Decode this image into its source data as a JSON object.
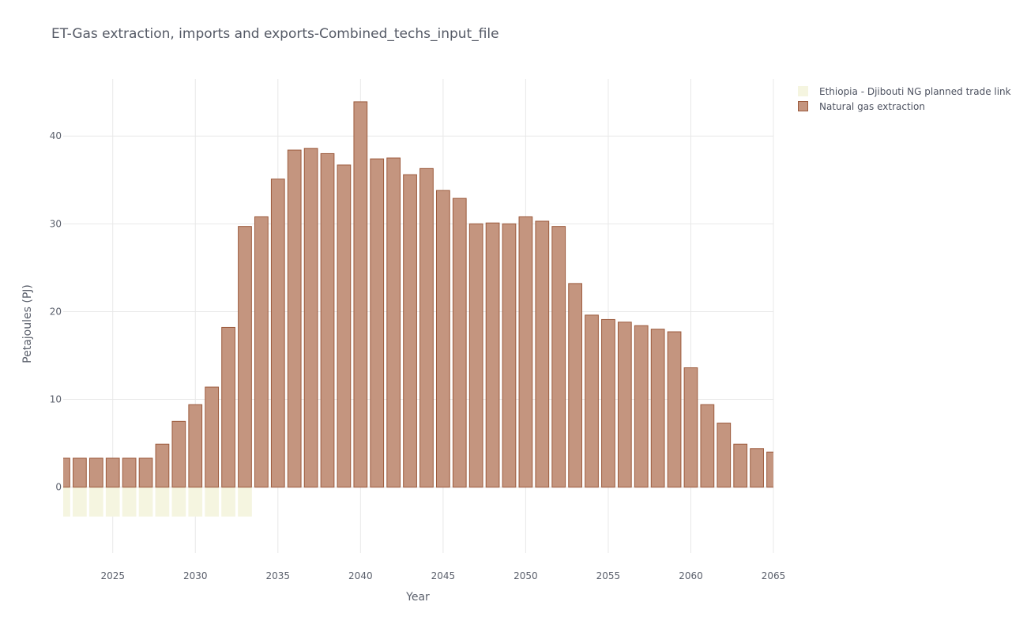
{
  "chart_data": {
    "type": "bar",
    "barmode": "relative",
    "title": "ET-Gas extraction, imports and exports-Combined_techs_input_file",
    "xlabel": "Year",
    "ylabel": "Petajoules (PJ)",
    "xlim": [
      2022,
      2065
    ],
    "ylim": [
      -7.5,
      46.5
    ],
    "xticks": [
      2025,
      2030,
      2035,
      2040,
      2045,
      2050,
      2055,
      2060,
      2065
    ],
    "yticks": [
      0,
      10,
      20,
      30,
      40
    ],
    "grid": true,
    "legend_position": "top-right",
    "series": [
      {
        "name": "Ethiopia - Djibouti NG planned trade link",
        "color": "#f5f5e0",
        "stroke": "#f5f5e0",
        "x": [
          2022,
          2023,
          2024,
          2025,
          2026,
          2027,
          2028,
          2029,
          2030,
          2031,
          2032,
          2033
        ],
        "values": [
          -3.3,
          -3.3,
          -3.3,
          -3.3,
          -3.3,
          -3.3,
          -3.3,
          -3.3,
          -3.3,
          -3.3,
          -3.3,
          -3.3
        ]
      },
      {
        "name": "Natural gas extraction",
        "color": "#c4957f",
        "stroke": "#9c5a3c",
        "x": [
          2022,
          2023,
          2024,
          2025,
          2026,
          2027,
          2028,
          2029,
          2030,
          2031,
          2032,
          2033,
          2034,
          2035,
          2036,
          2037,
          2038,
          2039,
          2040,
          2041,
          2042,
          2043,
          2044,
          2045,
          2046,
          2047,
          2048,
          2049,
          2050,
          2051,
          2052,
          2053,
          2054,
          2055,
          2056,
          2057,
          2058,
          2059,
          2060,
          2061,
          2062,
          2063,
          2064,
          2065
        ],
        "values": [
          3.3,
          3.3,
          3.3,
          3.3,
          3.3,
          3.3,
          4.9,
          7.5,
          9.4,
          11.4,
          18.2,
          29.7,
          30.8,
          35.1,
          38.4,
          38.6,
          38.0,
          36.7,
          43.9,
          37.4,
          37.5,
          35.6,
          36.3,
          33.8,
          32.9,
          30.0,
          30.1,
          30.0,
          30.8,
          30.3,
          29.7,
          23.2,
          19.6,
          19.1,
          18.8,
          18.4,
          18.0,
          17.7,
          13.6,
          9.4,
          7.3,
          4.9,
          4.4,
          4.0
        ]
      }
    ]
  }
}
